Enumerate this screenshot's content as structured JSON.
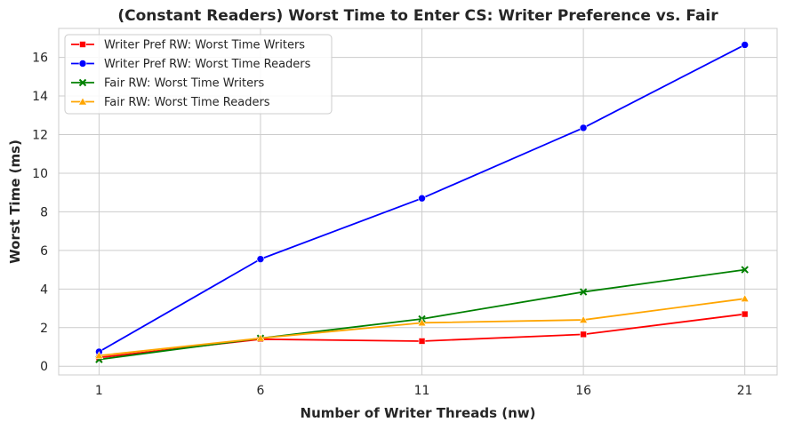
{
  "chart_data": {
    "type": "line",
    "title": "(Constant Readers) Worst Time to Enter CS: Writer Preference vs. Fair",
    "xlabel": "Number of Writer Threads (nw)",
    "ylabel": "Worst Time (ms)",
    "x": [
      1,
      6,
      11,
      16,
      21
    ],
    "x_ticks": [
      "1",
      "6",
      "11",
      "16",
      "21"
    ],
    "y_ticks": [
      "0",
      "2",
      "4",
      "6",
      "8",
      "10",
      "12",
      "14",
      "16"
    ],
    "xlim": [
      -0.25,
      22
    ],
    "ylim": [
      -0.45,
      17.5
    ],
    "grid": true,
    "legend_position": "top-left",
    "series": [
      {
        "name": "Writer Pref RW: Worst Time Writers",
        "color": "#ff0000",
        "marker": "square",
        "values": [
          0.45,
          1.4,
          1.3,
          1.65,
          2.7
        ]
      },
      {
        "name": "Writer Pref RW: Worst Time Readers",
        "color": "#0000ff",
        "marker": "circle",
        "values": [
          0.75,
          5.55,
          8.7,
          12.35,
          16.65
        ]
      },
      {
        "name": "Fair RW: Worst Time Writers",
        "color": "#008000",
        "marker": "x",
        "values": [
          0.35,
          1.45,
          2.45,
          3.85,
          5.0
        ]
      },
      {
        "name": "Fair RW: Worst Time Readers",
        "color": "#ffa500",
        "marker": "triangle",
        "values": [
          0.55,
          1.45,
          2.25,
          2.4,
          3.5
        ]
      }
    ]
  }
}
